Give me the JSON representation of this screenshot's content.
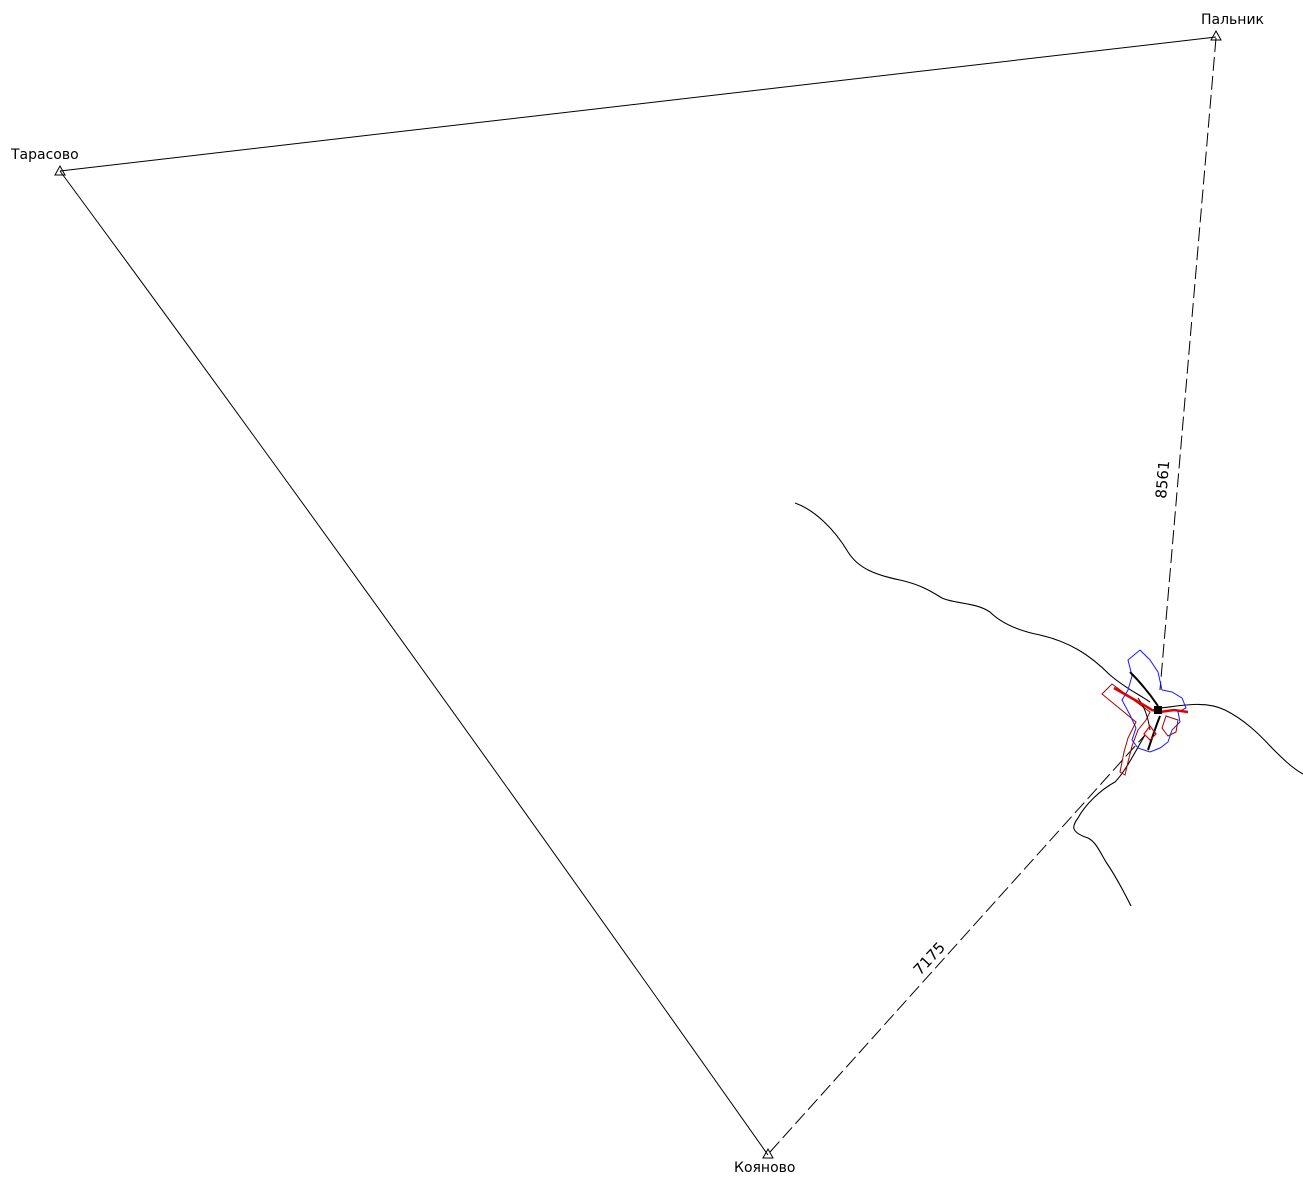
{
  "stations": {
    "tarasovo": "Тарасово",
    "palnik": "Пальник",
    "koyanovo": "Кояново"
  },
  "distances": {
    "palnik_to_object": "8561",
    "koyanovo_to_object": "7175"
  },
  "colors": {
    "line": "#000000",
    "highlight_red": "#e00000",
    "dark_red": "#a00000",
    "blue": "#1a1aff"
  }
}
